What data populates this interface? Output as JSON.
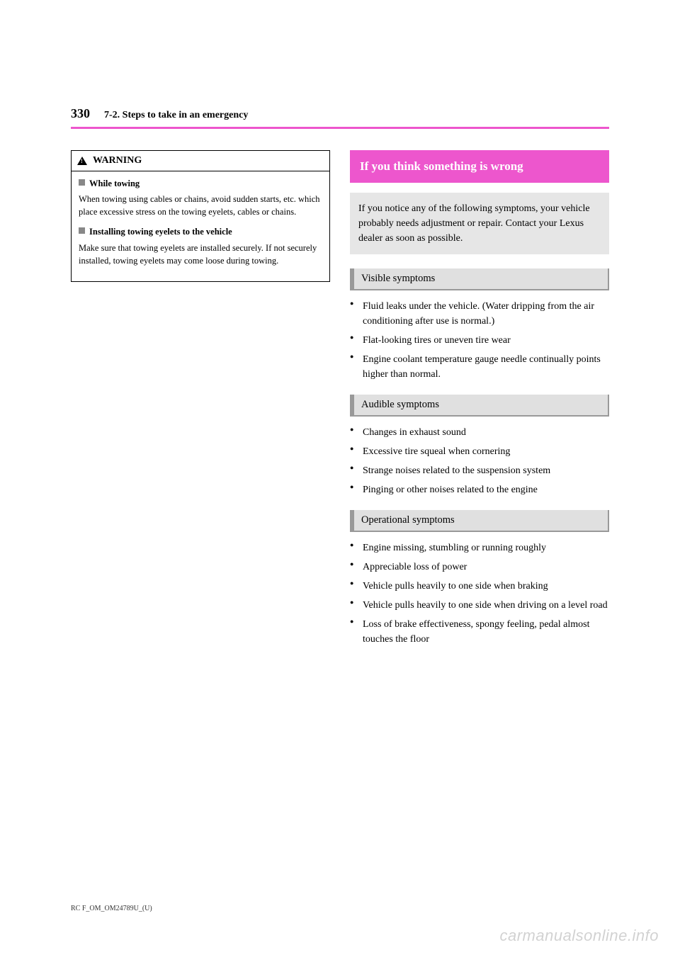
{
  "page_number": "330",
  "section_title": "7-2. Steps to take in an emergency",
  "left_column": {
    "warning_label": "WARNING",
    "while_towing": {
      "heading": "While towing",
      "text": "When towing using cables or chains, avoid sudden starts, etc. which place excessive stress on the towing eyelets, cables or chains."
    },
    "flat_bed": {
      "heading": "Installing towing eyelets to the vehicle",
      "text": "Make sure that towing eyelets are installed securely. If not securely installed, towing eyelets may come loose during towing."
    }
  },
  "right_column": {
    "heading": "If you think something is wrong",
    "intro": "If you notice any of the following symptoms, your vehicle probably needs adjustment or repair. Contact your Lexus dealer as soon as possible.",
    "visible": {
      "title": "Visible symptoms",
      "items": [
        "Fluid leaks under the vehicle. (Water dripping from the air conditioning after use is normal.)",
        "Flat-looking tires or uneven tire wear",
        "Engine coolant temperature gauge needle continually points higher than normal."
      ]
    },
    "audible": {
      "title": "Audible symptoms",
      "items": [
        "Changes in exhaust sound",
        "Excessive tire squeal when cornering",
        "Strange noises related to the suspension system",
        "Pinging or other noises related to the engine"
      ]
    },
    "operational": {
      "title": "Operational symptoms",
      "items": [
        "Engine missing, stumbling or running roughly",
        "Appreciable loss of power",
        "Vehicle pulls heavily to one side when braking",
        "Vehicle pulls heavily to one side when driving on a level road",
        "Loss of brake effectiveness, spongy feeling, pedal almost touches the floor"
      ]
    }
  },
  "footer": "RC F_OM_OM24789U_(U)",
  "watermark": "carmanualsonline.info"
}
